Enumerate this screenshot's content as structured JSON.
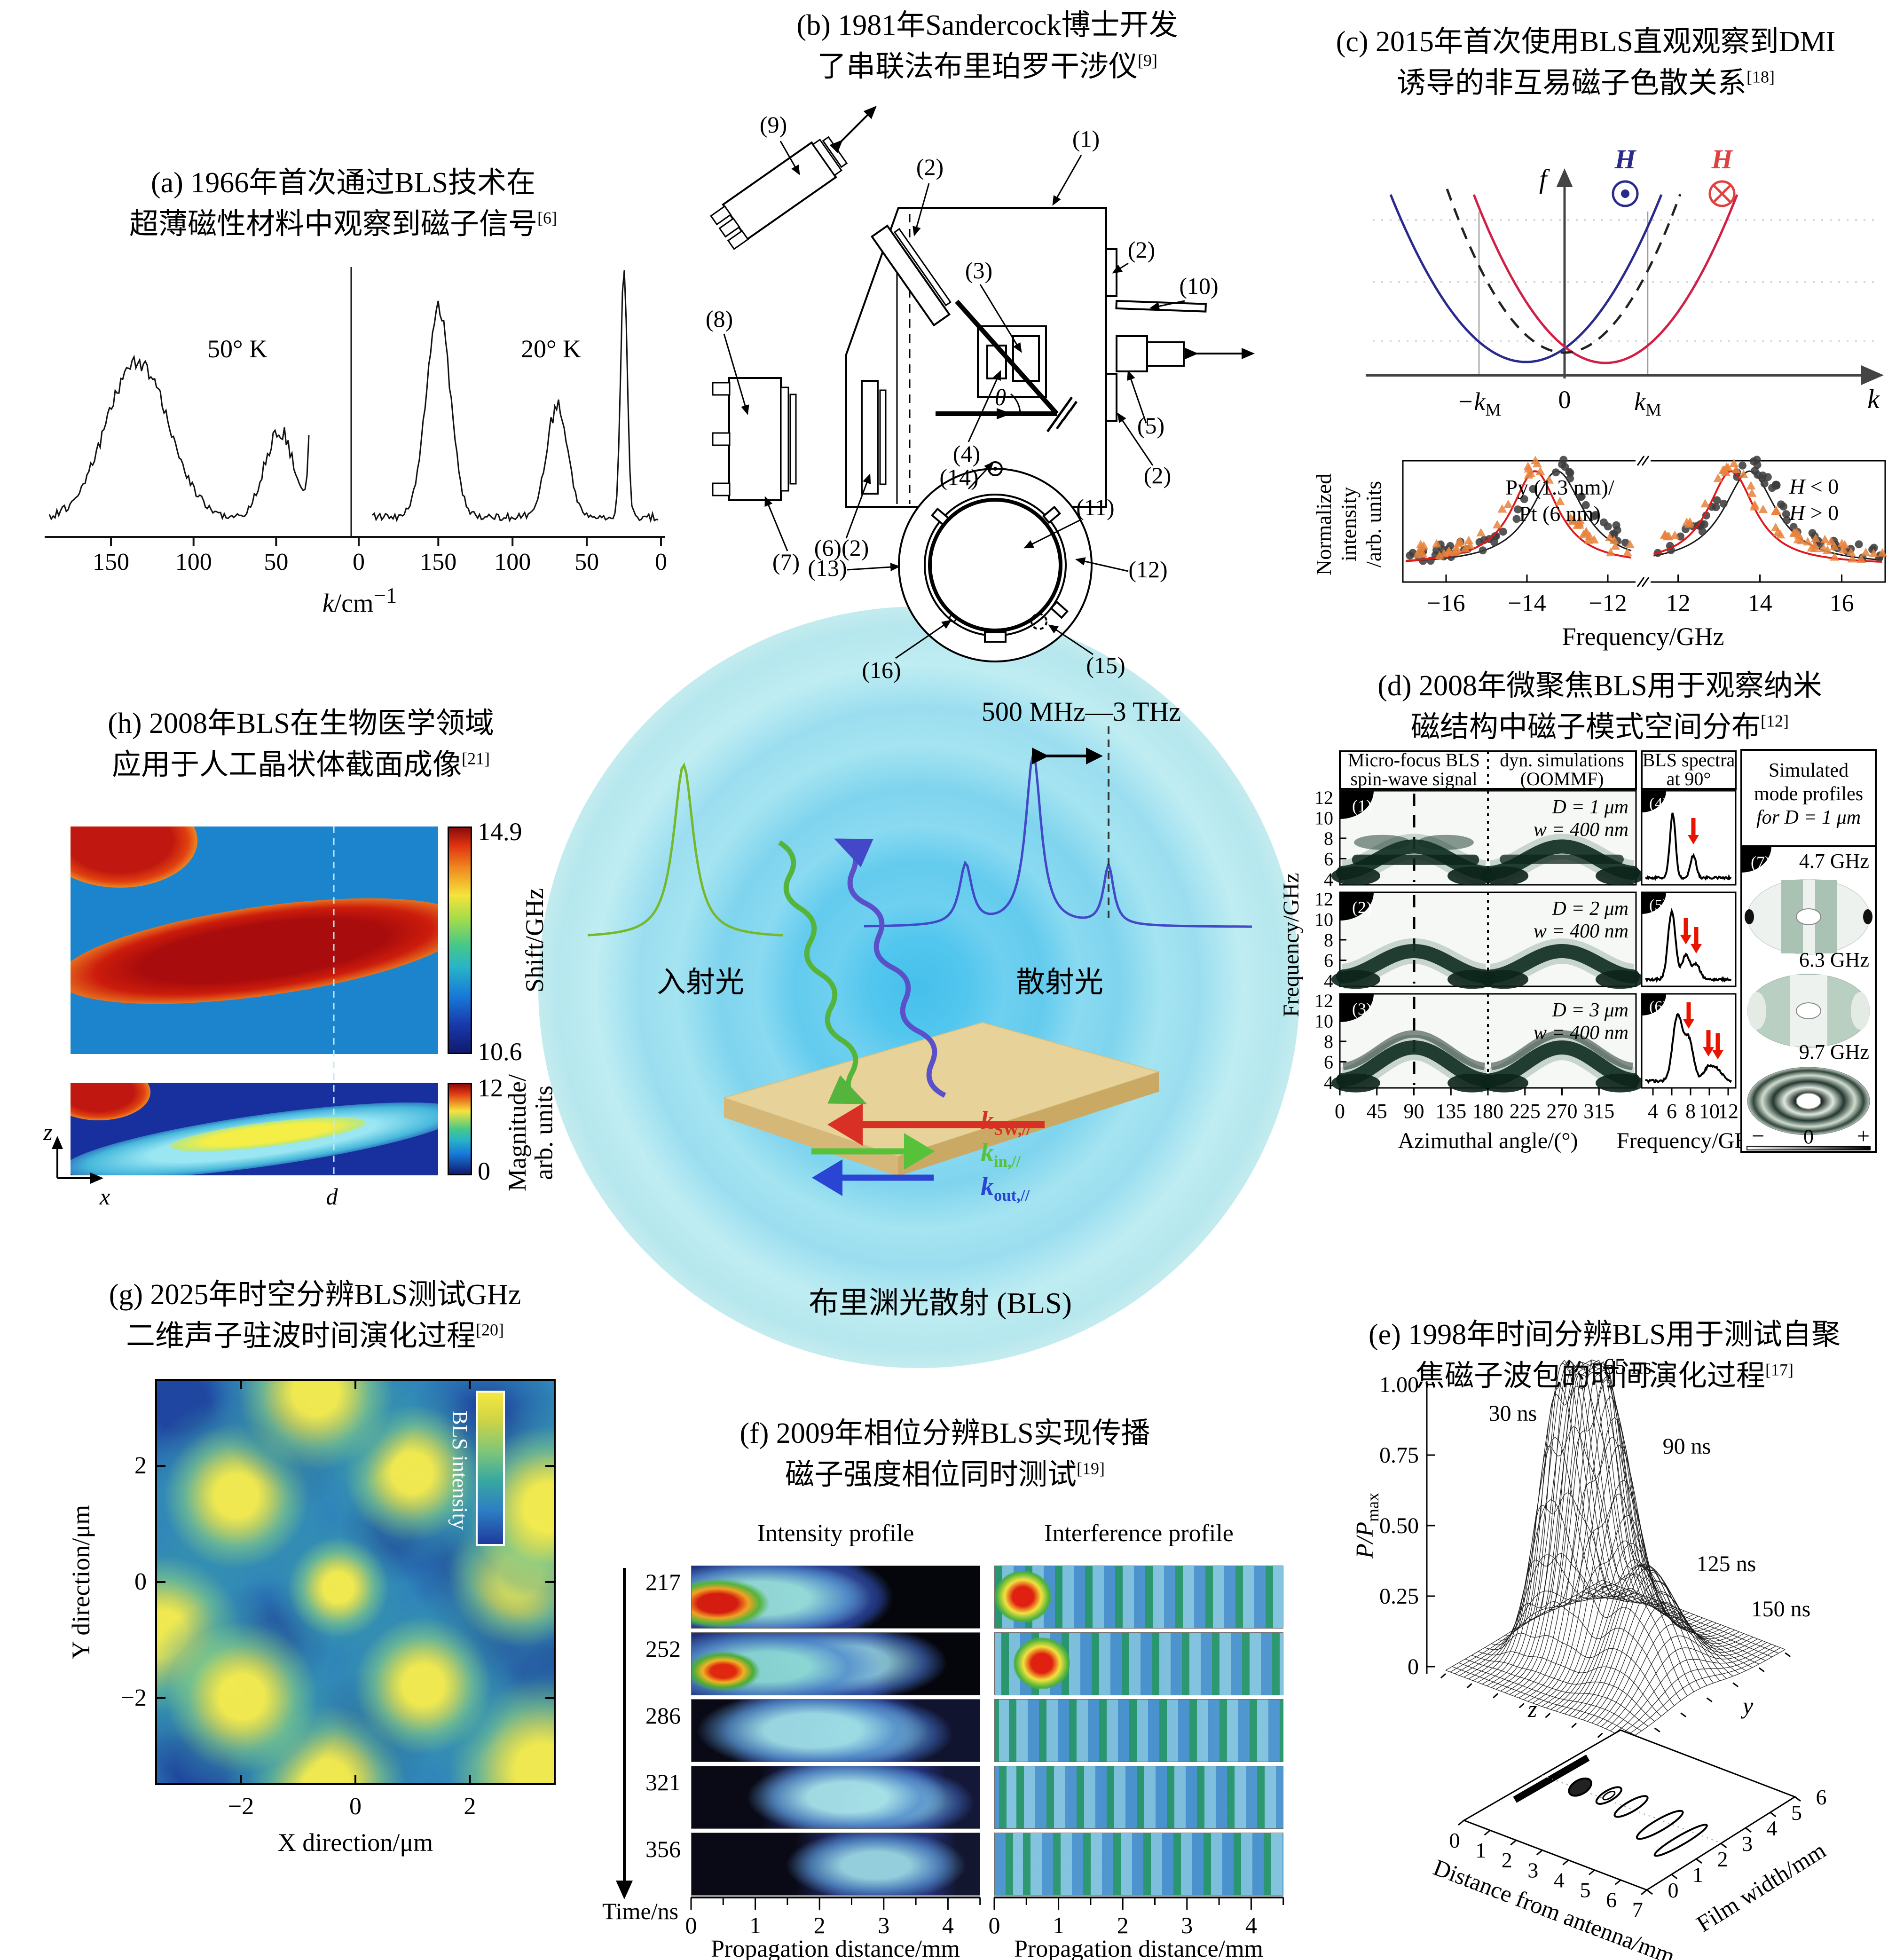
{
  "chart_data": [
    {
      "id": "a",
      "type": "line",
      "title": "First BLS magnon signal in thin magnetic films (1966)",
      "xlabel": "k/cm−1",
      "xticks": [
        150,
        100,
        50,
        0
      ],
      "panels": [
        {
          "label": "50° K",
          "peaks": [
            {
              "k": 134,
              "height": 0.6,
              "width": 19
            },
            {
              "k": 48,
              "height": 0.34,
              "width": 9
            }
          ],
          "elastic_k": 27
        },
        {
          "label": "20° K",
          "peaks": [
            {
              "k": 150,
              "height": 0.8,
              "width": 8
            },
            {
              "k": 70,
              "height": 0.42,
              "width": 7
            }
          ],
          "elastic_k": 25
        }
      ]
    },
    {
      "id": "c_dispersion",
      "type": "line",
      "xlabel": "k",
      "ylabel": "f",
      "xticks": [
        "−kM",
        "0",
        "kM"
      ],
      "curves": [
        {
          "name": "H out of plane",
          "color": "#2a2a8c",
          "vertex_k": "−0.46 kM"
        },
        {
          "name": "H into plane",
          "color": "#d02048",
          "vertex_k": "+0.49 kM"
        },
        {
          "name": "without DMI",
          "color": "#222222",
          "style": "dashed",
          "vertex_k": "0"
        }
      ]
    },
    {
      "id": "c_spectra",
      "type": "scatter",
      "xlabel": "Frequency/GHz",
      "xticks": [
        -16,
        -14,
        -12,
        12,
        14,
        16
      ],
      "sample": "Py (1.3 nm)/Pt (6 nm)",
      "ylabel": "Normalized intensity/arb. units",
      "series": [
        {
          "name": "H < 0",
          "marker": "circle",
          "color": "#3f3f3f",
          "line_color": "#1a1a1a",
          "peaks_GHz": [
            -13.25,
            13.75
          ],
          "width_GHz": 0.78
        },
        {
          "name": "H > 0",
          "marker": "triangle",
          "color": "#e8823c",
          "line_color": "#e01818",
          "peaks_GHz": [
            -13.8,
            13.3
          ],
          "width_GHz": 0.7
        }
      ]
    },
    {
      "id": "d",
      "type": "heatmap",
      "ylabel": "Frequency/GHz",
      "ylim": [
        3.2,
        12.4
      ],
      "azimuthal_ticks": [
        0,
        45,
        90,
        135,
        180,
        225,
        270,
        315
      ],
      "freq_ticks": [
        4,
        6,
        8,
        10,
        12
      ],
      "rows": [
        {
          "n": "(1)",
          "D_um": 1,
          "w_nm": 400,
          "arc_min_GHz": 4.6,
          "arc_max_GHz": 7.2,
          "spectrum_peaks": [
            {
              "f": 6.1,
              "h": 0.85
            },
            {
              "f": 8.3,
              "h": 0.3
            }
          ],
          "arrow_f": [
            8.3
          ]
        },
        {
          "n": "(2)",
          "D_um": 2,
          "w_nm": 400,
          "arc_min_GHz": 4.4,
          "arc_max_GHz": 6.9,
          "spectrum_peaks": [
            {
              "f": 6.0,
              "h": 0.9
            },
            {
              "f": 7.5,
              "h": 0.32
            },
            {
              "f": 8.6,
              "h": 0.2
            }
          ],
          "arrow_f": [
            7.5,
            8.6
          ]
        },
        {
          "n": "(3)",
          "D_um": 3,
          "w_nm": 400,
          "arc_min_GHz": 4.2,
          "arc_max_GHz": 7.4,
          "spectrum_peaks": [
            {
              "f": 6.6,
              "h": 0.85
            },
            {
              "f": 7.8,
              "h": 0.55
            },
            {
              "f": 9.9,
              "h": 0.18
            },
            {
              "f": 10.9,
              "h": 0.14
            }
          ],
          "arrow_f": [
            7.8,
            9.9,
            10.9
          ]
        }
      ],
      "mode_profiles_GHz": [
        4.7,
        6.3,
        9.7
      ]
    },
    {
      "id": "e",
      "type": "surface",
      "zlabel": "P/Pmax",
      "zticks": [
        0,
        0.25,
        0.5,
        0.75,
        1.0
      ],
      "xlabel": "Distance from antenna/mm",
      "xlim": [
        0,
        7
      ],
      "ylabel": "Film width/mm",
      "ylim": [
        0,
        6
      ],
      "wavepackets": [
        {
          "t_ns": 30,
          "d_mm": 1.35,
          "w_mm": 3.1,
          "peak": 0.88
        },
        {
          "t_ns": 65,
          "d_mm": 2.35,
          "w_mm": 3.2,
          "peak": 1.0
        },
        {
          "t_ns": 90,
          "d_mm": 3.3,
          "w_mm": 3.1,
          "peak": 0.73
        },
        {
          "t_ns": 125,
          "d_mm": 4.7,
          "w_mm": 2.8,
          "peak": 0.33
        },
        {
          "t_ns": 150,
          "d_mm": 5.8,
          "w_mm": 2.5,
          "peak": 0.2
        }
      ]
    },
    {
      "id": "f",
      "type": "heatmap",
      "rows_time_ns": [
        217,
        252,
        286,
        321,
        356
      ],
      "columns": [
        "Intensity profile",
        "Interference profile"
      ],
      "xlabel": "Propagation distance/mm",
      "xlim": [
        0,
        4.5
      ],
      "xticks": [
        0,
        1,
        2,
        3,
        4
      ]
    },
    {
      "id": "g",
      "type": "heatmap",
      "xlabel": "X direction/μm",
      "ylabel": "Y direction/μm",
      "xlim": [
        -3.5,
        3.5
      ],
      "ylim": [
        -3.5,
        3.5
      ],
      "xticks": [
        -2,
        0,
        2
      ],
      "yticks": [
        2,
        0,
        -2
      ],
      "colorbar": "BLS intensity",
      "maxima_um": [
        [
          -0.7,
          3.3
        ],
        [
          -2.1,
          1.5
        ],
        [
          1.0,
          1.9
        ],
        [
          3.4,
          1.3
        ],
        [
          -0.3,
          -0.1
        ],
        [
          2.9,
          0.1
        ],
        [
          -2.0,
          -2.0
        ],
        [
          1.2,
          -1.8
        ],
        [
          3.3,
          -3.3
        ],
        [
          -3.4,
          -0.9
        ],
        [
          -0.5,
          -3.5
        ]
      ],
      "minima_um": [
        [
          -1.3,
          2.4
        ],
        [
          0.7,
          0.9
        ],
        [
          2.3,
          2.7
        ],
        [
          -1.5,
          -1.0
        ],
        [
          0.2,
          -2.7
        ],
        [
          2.5,
          -0.7
        ],
        [
          -3.1,
          3.1
        ],
        [
          3.4,
          -1.6
        ],
        [
          -2.7,
          -3.2
        ],
        [
          1.9,
          0.3
        ]
      ]
    },
    {
      "id": "h",
      "type": "heatmap",
      "maps": [
        {
          "colorbar_label": "Shift/GHz",
          "cb_range": [
            10.6,
            14.9
          ]
        },
        {
          "colorbar_label": "Magnitude/arb. units",
          "cb_range": [
            0,
            12
          ]
        }
      ]
    }
  ],
  "panels": {
    "a": {
      "t1": "(a) 1966年首次通过BLS技术在",
      "t2": "超薄磁性材料中观察到磁子信号",
      "ref": "[6]",
      "temp_left": "50° K",
      "temp_right": "20° K",
      "xlabel_base": "k",
      "xlabel_mid": "/cm",
      "xlabel_sup": "−1",
      "xticks": [
        "150",
        "100",
        "50",
        "0"
      ]
    },
    "b": {
      "t1": "(b) 1981年Sandercock博士开发",
      "t2": "了串联法布里珀罗干涉仪",
      "ref": "[9]",
      "labels": {
        "n9": "(9)",
        "n2a": "(2)",
        "n1": "(1)",
        "n2b": "(2)",
        "n10": "(10)",
        "n8": "(8)",
        "n3": "(3)",
        "theta": "θ",
        "n4": "(4)",
        "n5": "(5)",
        "n2c": "(2)",
        "n7": "(7)",
        "n6": "(6)(2)",
        "n14": "(14)",
        "n11": "(11)",
        "n13": "(13)",
        "n12": "(12)",
        "n16": "(16)",
        "n15": "(15)"
      }
    },
    "c": {
      "t1": "(c) 2015年首次使用BLS直观观察到DMI",
      "t2": "诱导的非互易磁子色散关系",
      "ref": "[18]",
      "f": "f",
      "k": "k",
      "km_neg": "−k",
      "km_pos": "k",
      "km_sub": "M",
      "zero": "0",
      "H": "H",
      "leg1h": "H",
      "leg1rest": " < 0",
      "leg2h": "H",
      "leg2rest": " > 0",
      "sample1": "Py (1.3 nm)/",
      "sample2": "Pt (6 nm)",
      "ylabel1": "Normalized intensity",
      "ylabel2": "/arb. units",
      "xlabel": "Frequency/GHz",
      "xticks": [
        "−16",
        "−14",
        "−12",
        "12",
        "14",
        "16"
      ]
    },
    "d": {
      "t1": "(d) 2008年微聚焦BLS用于观察纳米",
      "t2": "磁结构中磁子模式空间分布",
      "ref": "[12]",
      "h1a": "Micro-focus BLS",
      "h1b": "spin-wave signal",
      "h2a": "dyn. simulations",
      "h2b": "(OOMMF)",
      "h3a": "BLS spectra",
      "h3b": "at 90°",
      "m1": "Simulated",
      "m2": "mode profiles",
      "m3": "for D = 1 μm",
      "rows": [
        {
          "n": "(1)",
          "D": "D = 1 μm",
          "w": "w = 400 nm",
          "sn": "(4)"
        },
        {
          "n": "(2)",
          "D": "D = 2 μm",
          "w": "w = 400 nm",
          "sn": "(5)"
        },
        {
          "n": "(3)",
          "D": "D = 3 μm",
          "w": "w = 400 nm",
          "sn": "(6)"
        }
      ],
      "mode_n": "(7)",
      "mode_freqs": [
        "4.7 GHz",
        "6.3 GHz",
        "9.7 GHz"
      ],
      "cb_minus": "−",
      "cb_zero": "0",
      "cb_plus": "+",
      "ylabel": "Frequency/GHz",
      "yticks": [
        "12",
        "10",
        "8",
        "6",
        "4"
      ],
      "az_ticks": [
        "0",
        "45",
        "90",
        "135",
        "180",
        "225",
        "270",
        "315"
      ],
      "f_ticks": [
        "4",
        "6",
        "8",
        "10",
        "12"
      ],
      "xlabel1": "Azimuthal angle/(°)",
      "xlabel2": "Frequency/GHz"
    },
    "e": {
      "t1": "(e) 1998年时间分辨BLS用于测试自聚",
      "t2": "焦磁子波包的时间演化过程",
      "ref": "[17]",
      "ylabel_base": "P/P",
      "ylabel_sub": "max",
      "yticks": [
        "1.00",
        "0.75",
        "0.50",
        "0.25",
        "0"
      ],
      "times": [
        "30 ns",
        "65 ns",
        "90 ns",
        "125 ns",
        "150 ns"
      ],
      "xlabel": "Distance from antenna/mm",
      "wlabel": "Film width/mm",
      "dticks": [
        "0",
        "1",
        "2",
        "3",
        "4",
        "5",
        "6",
        "7"
      ],
      "wticks": [
        "0",
        "1",
        "2",
        "3",
        "4",
        "5",
        "6"
      ],
      "z": "z",
      "y": "y"
    },
    "f": {
      "t1": "(f) 2009年相位分辨BLS实现传播",
      "t2": "磁子强度相位同时测试",
      "ref": "[19]",
      "col1": "Intensity profile",
      "col2": "Interference profile",
      "times": [
        "217",
        "252",
        "286",
        "321",
        "356"
      ],
      "tlabel": "Time/ns",
      "xlabel": "Propagation distance/mm",
      "xticks": [
        "0",
        "1",
        "2",
        "3",
        "4"
      ]
    },
    "g": {
      "t1": "(g) 2025年时空分辨BLS测试GHz",
      "t2": "二维声子驻波时间演化过程",
      "ref": "[20]",
      "yticks": [
        "2",
        "0",
        "−2"
      ],
      "xticks": [
        "−2",
        "0",
        "2"
      ],
      "ylabel": "Y direction/μm",
      "xlabel": "X direction/μm",
      "cb": "BLS intensity"
    },
    "h": {
      "t1": "(h) 2008年BLS在生物医学领域",
      "t2": "应用于人工晶状体截面成像",
      "ref": "[21]",
      "cb1_top": "14.9",
      "cb1_bot": "10.6",
      "cb1_label": "Shift/GHz",
      "cb2_top": "12",
      "cb2_bot": "0",
      "cb2_l1": "Magnitude/",
      "cb2_l2": "arb. units",
      "z": "z",
      "x": "x",
      "d": "d"
    },
    "center": {
      "range": "500 MHz—3 THz",
      "incident": "入射光",
      "scattered": "散射光",
      "caption": "布里渊光散射 (BLS)",
      "ksw_base": "k",
      "ksw_sub": "SW,//",
      "kin_base": "k",
      "kin_sub": "in,//",
      "kout_base": "k",
      "kout_sub": "out,//"
    }
  }
}
